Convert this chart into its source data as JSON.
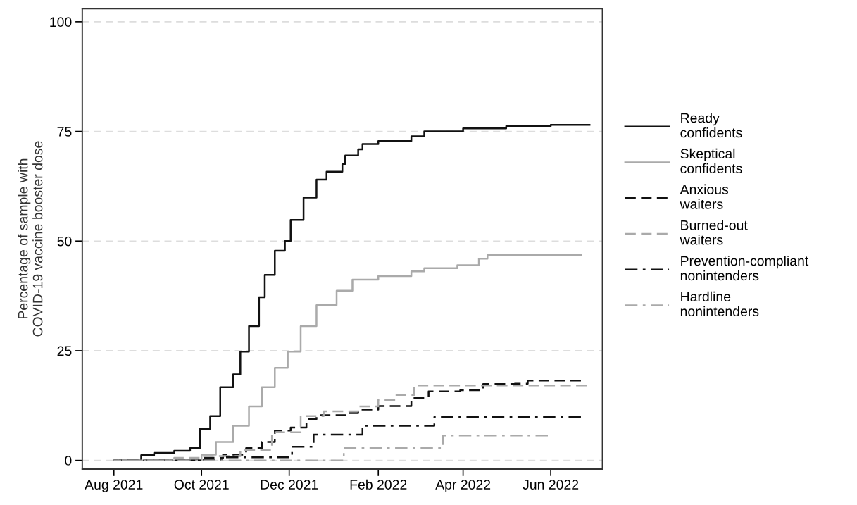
{
  "chart_data": {
    "type": "step",
    "ylabel": "Percentage of sample with\nCOVID-19 vaccine booster dose",
    "xlim": [
      "2021-07-10",
      "2022-07-07"
    ],
    "ylim": [
      -2,
      103
    ],
    "xticks": [
      {
        "value": "2021-08-01",
        "label": "Aug 2021"
      },
      {
        "value": "2021-10-01",
        "label": "Oct 2021"
      },
      {
        "value": "2021-12-01",
        "label": "Dec 2021"
      },
      {
        "value": "2022-02-01",
        "label": "Feb 2022"
      },
      {
        "value": "2022-04-01",
        "label": "Apr 2022"
      },
      {
        "value": "2022-06-01",
        "label": "Jun 2022"
      }
    ],
    "yticks": [
      0,
      25,
      50,
      75,
      100
    ],
    "grid": "y",
    "legend": "right",
    "series": [
      {
        "name": "Ready\nconfidents",
        "color": "#111111",
        "line_style": "solid",
        "x": [
          "2021-08-01",
          "2021-08-20",
          "2021-08-29",
          "2021-09-12",
          "2021-09-23",
          "2021-09-30",
          "2021-10-07",
          "2021-10-14",
          "2021-10-23",
          "2021-10-28",
          "2021-11-03",
          "2021-11-10",
          "2021-11-14",
          "2021-11-21",
          "2021-11-28",
          "2021-12-02",
          "2021-12-11",
          "2021-12-20",
          "2021-12-27",
          "2022-01-07",
          "2022-01-09",
          "2022-01-18",
          "2022-01-21",
          "2022-02-01",
          "2022-02-24",
          "2022-03-05",
          "2022-04-01",
          "2022-05-01",
          "2022-06-01",
          "2022-06-28"
        ],
        "values": [
          0,
          1.2,
          1.7,
          2.2,
          2.8,
          7.2,
          10.1,
          16.7,
          19.6,
          24.8,
          30.6,
          37.2,
          42.3,
          47.8,
          50,
          54.8,
          59.9,
          64,
          65.8,
          67.6,
          69.5,
          70.9,
          72.1,
          72.8,
          73.9,
          75,
          75.7,
          76.2,
          76.5,
          76.5
        ]
      },
      {
        "name": "Skeptical\nconfidents",
        "color": "#aaaaaa",
        "line_style": "solid",
        "x": [
          "2021-08-01",
          "2021-09-21",
          "2021-10-01",
          "2021-10-11",
          "2021-10-23",
          "2021-11-03",
          "2021-11-12",
          "2021-11-21",
          "2021-11-30",
          "2021-12-09",
          "2021-12-20",
          "2022-01-03",
          "2022-01-14",
          "2022-02-01",
          "2022-02-24",
          "2022-03-05",
          "2022-03-28",
          "2022-04-12",
          "2022-04-18",
          "2022-06-01",
          "2022-06-22"
        ],
        "values": [
          0,
          0.2,
          1.3,
          4.2,
          7.9,
          12.3,
          16.7,
          21.1,
          24.8,
          30.6,
          35.4,
          38.7,
          41.2,
          42,
          43.1,
          43.8,
          44.5,
          46,
          46.8,
          46.8,
          46.8
        ]
      },
      {
        "name": "Anxious\nwaiters",
        "color": "#111111",
        "line_style": "dashed",
        "x": [
          "2021-08-01",
          "2021-10-01",
          "2021-10-16",
          "2021-11-01",
          "2021-11-12",
          "2021-11-21",
          "2021-12-02",
          "2021-12-13",
          "2021-12-20",
          "2022-01-09",
          "2022-01-18",
          "2022-02-01",
          "2022-02-24",
          "2022-03-08",
          "2022-03-30",
          "2022-04-15",
          "2022-05-07",
          "2022-05-16",
          "2022-06-22"
        ],
        "values": [
          0,
          0.6,
          1.3,
          2.8,
          4.2,
          6.8,
          7.5,
          9.4,
          10.3,
          10.8,
          11.6,
          12.4,
          14.2,
          15.7,
          16,
          17.4,
          17.5,
          18.2,
          18.2
        ]
      },
      {
        "name": "Burned-out\nwaiters",
        "color": "#aaaaaa",
        "line_style": "dashed",
        "x": [
          "2021-08-01",
          "2021-09-12",
          "2021-10-01",
          "2021-10-28",
          "2021-11-19",
          "2021-12-09",
          "2021-12-25",
          "2022-01-18",
          "2022-02-01",
          "2022-02-13",
          "2022-02-26",
          "2022-06-26"
        ],
        "values": [
          0,
          0.6,
          1,
          2.4,
          6.4,
          10.1,
          11.2,
          12.3,
          13.8,
          14.9,
          17.1,
          17.1
        ]
      },
      {
        "name": "Prevention-compliant\nnonintenders",
        "color": "#111111",
        "line_style": "dashdot",
        "x": [
          "2021-08-01",
          "2021-10-01",
          "2021-10-16",
          "2021-12-03",
          "2021-12-18",
          "2022-01-21",
          "2022-03-12",
          "2022-06-22"
        ],
        "values": [
          0,
          0.2,
          0.7,
          3.1,
          5.9,
          7.9,
          9.9,
          9.9
        ]
      },
      {
        "name": "Hardline\nnonintenders",
        "color": "#aaaaaa",
        "line_style": "dashdot",
        "x": [
          "2021-08-01",
          "2022-01-08",
          "2022-03-18",
          "2022-05-30"
        ],
        "values": [
          0,
          2.8,
          5.7,
          5.7
        ]
      }
    ]
  }
}
